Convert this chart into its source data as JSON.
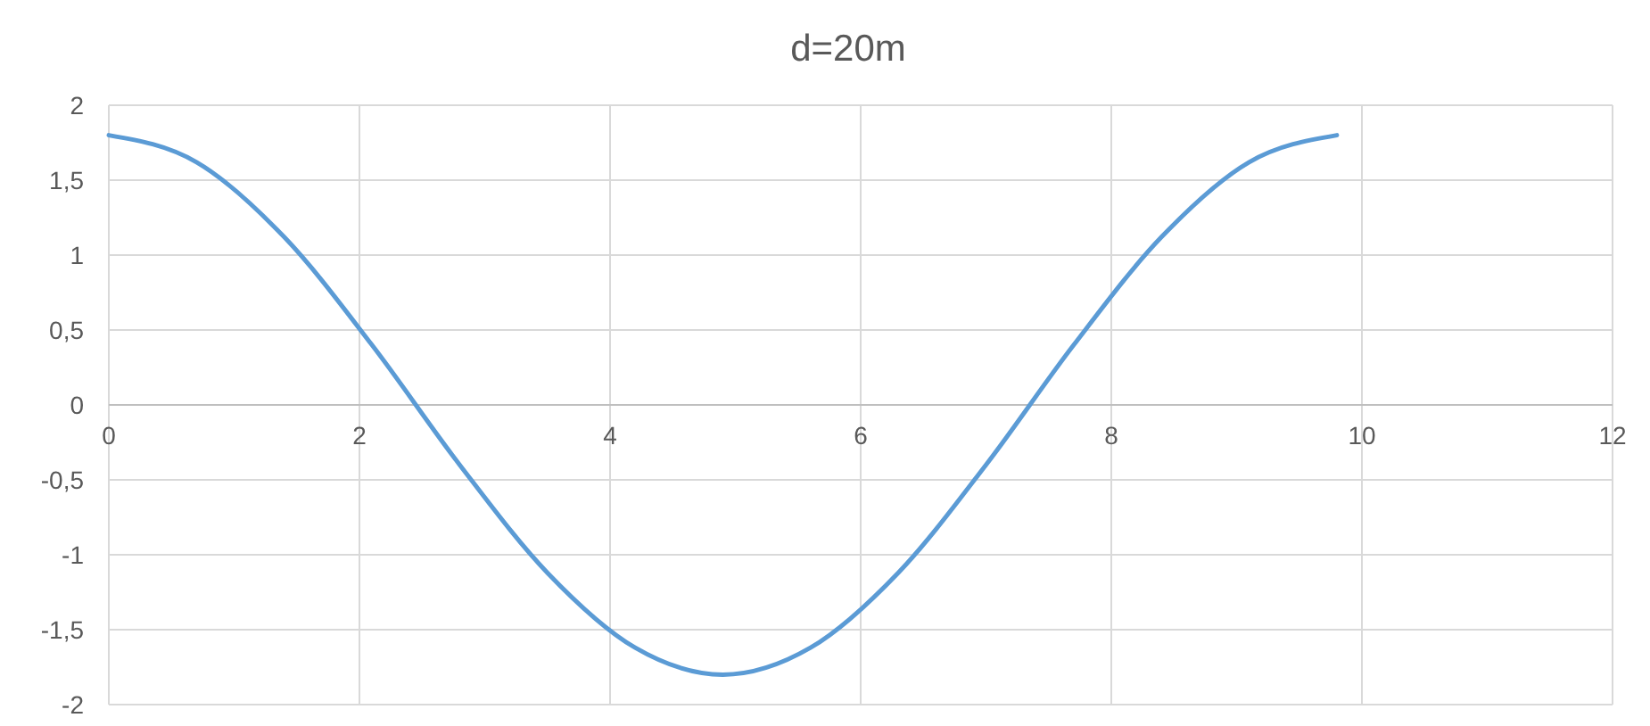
{
  "chart_data": {
    "type": "line",
    "title": "d=20m",
    "x": [
      0,
      0.7,
      1.4,
      2.1,
      2.8,
      3.5,
      4.2,
      4.9,
      5.6,
      6.3,
      7.0,
      7.7,
      8.4,
      9.1,
      9.8
    ],
    "series": [
      {
        "color": "#5b9bd5",
        "values": [
          1.8,
          1.62,
          1.12,
          0.4,
          -0.4,
          -1.12,
          -1.62,
          -1.8,
          -1.62,
          -1.12,
          -0.4,
          0.4,
          1.12,
          1.62,
          1.8
        ]
      }
    ],
    "xlim": [
      0,
      12
    ],
    "xticks": [
      0,
      2,
      4,
      6,
      8,
      10,
      12
    ],
    "ylim": [
      -2,
      2
    ],
    "yticks": [
      {
        "value": -2,
        "label": "-2"
      },
      {
        "value": -1.5,
        "label": "-1,5"
      },
      {
        "value": -1,
        "label": "-1"
      },
      {
        "value": -0.5,
        "label": "-0,5"
      },
      {
        "value": 0,
        "label": "0"
      },
      {
        "value": 0.5,
        "label": "0,5"
      },
      {
        "value": 1,
        "label": "1"
      },
      {
        "value": 1.5,
        "label": "1,5"
      },
      {
        "value": 2,
        "label": "2"
      }
    ],
    "grid": true
  }
}
